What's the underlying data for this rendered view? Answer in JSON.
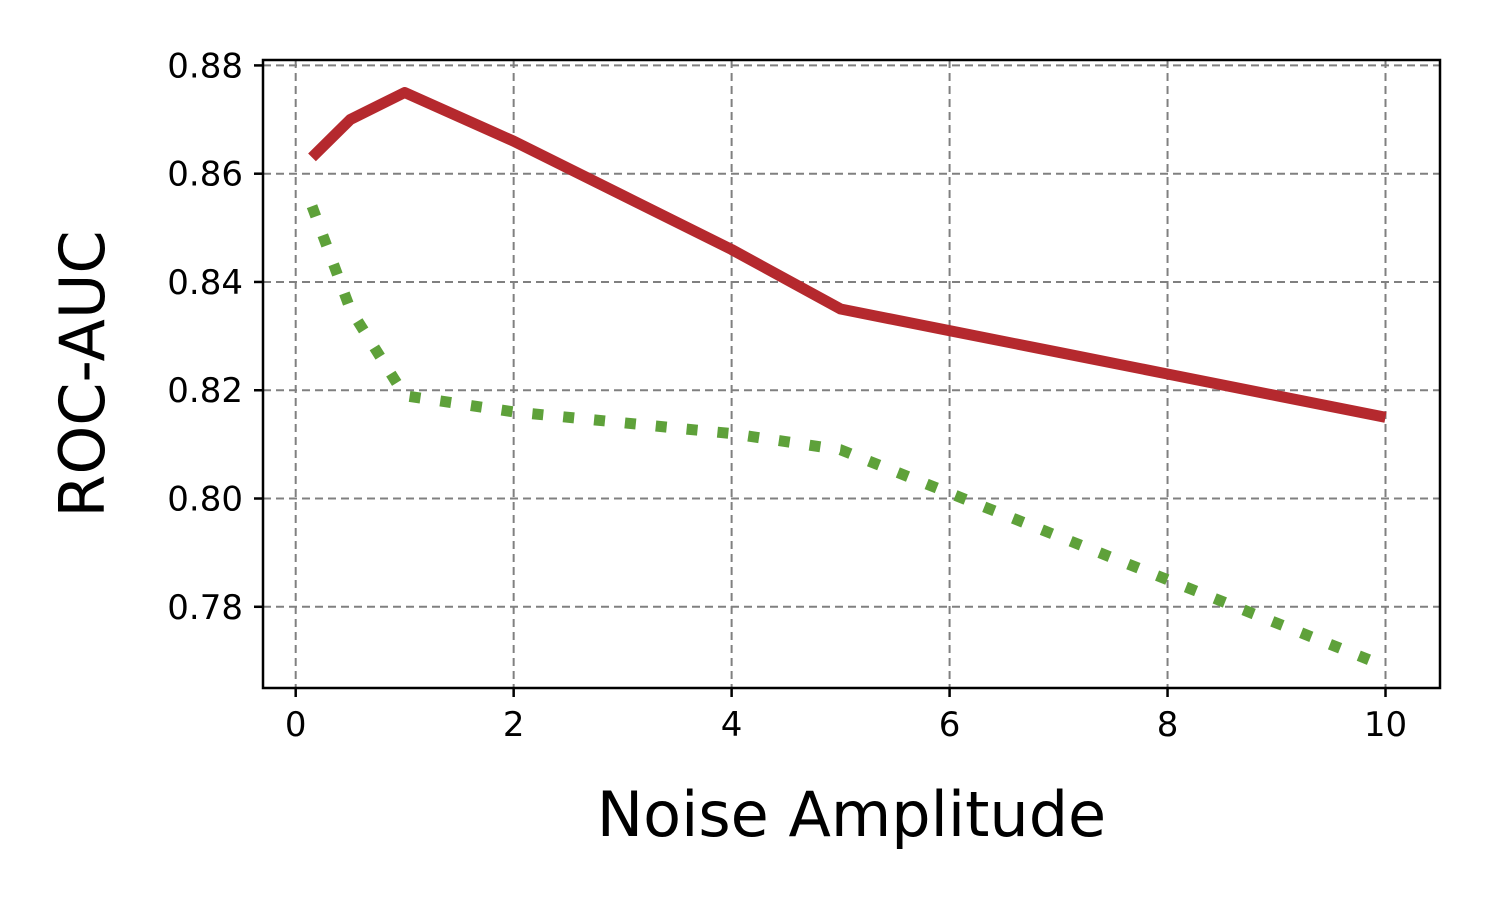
{
  "chart_data": {
    "type": "line",
    "xlabel": "Noise Amplitude",
    "ylabel": "ROC-AUC",
    "xlim": [
      -0.3,
      10.5
    ],
    "ylim": [
      0.765,
      0.881
    ],
    "x_ticks": [
      0,
      2,
      4,
      6,
      8,
      10
    ],
    "x_tick_labels": [
      "0",
      "2",
      "4",
      "6",
      "8",
      "10"
    ],
    "y_ticks": [
      0.78,
      0.8,
      0.82,
      0.84,
      0.86,
      0.88
    ],
    "y_tick_labels": [
      "0.78",
      "0.80",
      "0.82",
      "0.84",
      "0.86",
      "0.88"
    ],
    "grid": true,
    "series": [
      {
        "color": "#b5292e",
        "line_style": "solid",
        "x": [
          0.15,
          0.5,
          1,
          2,
          3,
          4,
          5,
          6,
          7,
          8,
          9,
          10
        ],
        "y": [
          0.863,
          0.87,
          0.875,
          0.866,
          0.856,
          0.846,
          0.835,
          0.831,
          0.827,
          0.823,
          0.819,
          0.815
        ]
      },
      {
        "color": "#5ea13a",
        "line_style": "dotted",
        "x": [
          0.15,
          0.5,
          1,
          2,
          3,
          4,
          5,
          6,
          7,
          8,
          9,
          10
        ],
        "y": [
          0.854,
          0.835,
          0.819,
          0.816,
          0.814,
          0.812,
          0.809,
          0.801,
          0.793,
          0.785,
          0.777,
          0.769
        ]
      }
    ]
  }
}
